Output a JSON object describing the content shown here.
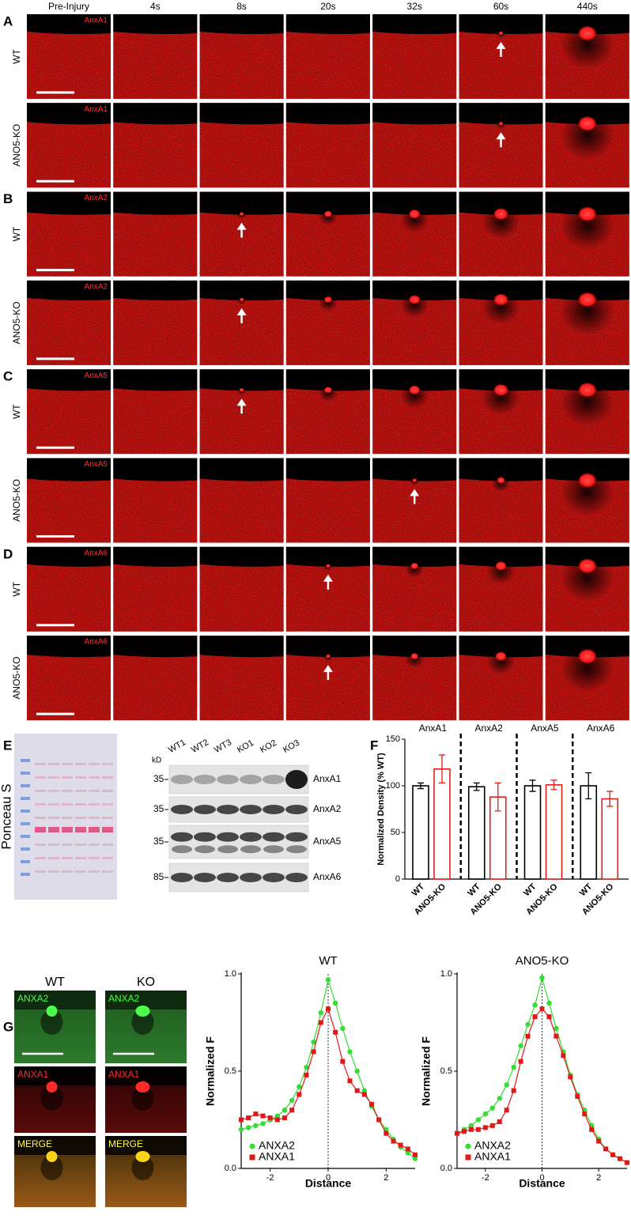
{
  "panels_ad": {
    "time_points": [
      "Pre-Injury",
      "4s",
      "8s",
      "20s",
      "32s",
      "60s",
      "440s"
    ],
    "panels": [
      {
        "letter": "A",
        "stain": "AnxA1",
        "rows": [
          "WT",
          "ANO5-KO"
        ]
      },
      {
        "letter": "B",
        "stain": "AnxA2",
        "rows": [
          "WT",
          "ANO5-KO"
        ]
      },
      {
        "letter": "C",
        "stain": "AnxA5",
        "rows": [
          "WT",
          "ANO5-KO"
        ]
      },
      {
        "letter": "D",
        "stain": "AnxA6",
        "rows": [
          "WT",
          "ANO5-KO"
        ]
      }
    ]
  },
  "panel_e": {
    "letter": "E",
    "ponceau_label": "Ponceau S",
    "kd_label": "kD",
    "lanes": [
      "WT1",
      "WT2",
      "WT3",
      "KO1",
      "KO2",
      "KO3"
    ],
    "blots": [
      {
        "marker": "35",
        "protein": "AnxA1"
      },
      {
        "marker": "35",
        "protein": "AnxA2"
      },
      {
        "marker": "35",
        "protein": "AnxA5"
      },
      {
        "marker": "85",
        "protein": "AnxA6"
      }
    ]
  },
  "panel_f": {
    "letter": "F"
  },
  "panel_g": {
    "letter": "G",
    "columns": [
      "WT",
      "KO"
    ],
    "channels": [
      "ANXA2",
      "ANXA1",
      "MERGE"
    ]
  },
  "chart_data": [
    {
      "type": "bar",
      "categories": [
        "AnxA1",
        "AnxA2",
        "AnxA5",
        "AnxA6"
      ],
      "y_label": "Normalized Density (% WT)",
      "ylim": [
        0,
        150
      ],
      "yticks": [
        0,
        50,
        100,
        150
      ],
      "series": [
        {
          "name": "WT",
          "color": "#000000",
          "values": [
            100,
            99,
            100,
            100
          ],
          "errors": [
            3,
            4,
            6,
            14
          ]
        },
        {
          "name": "ANO5-KO",
          "color": "#e0201b",
          "values": [
            118,
            88,
            101,
            86
          ],
          "errors": [
            15,
            15,
            5,
            8
          ]
        }
      ]
    },
    {
      "type": "line",
      "title": "WT",
      "x_label": "Distance",
      "y_label": "Normalized F",
      "xlim": [
        -3,
        3
      ],
      "xticks": [
        -2,
        0,
        2
      ],
      "ylim": [
        0,
        1
      ],
      "yticks": [
        {
          "value": 0,
          "label": "0.0"
        },
        {
          "value": 0.5,
          "label": "0.5"
        },
        {
          "value": 1,
          "label": "1.0"
        }
      ],
      "x": [
        -3,
        -2.75,
        -2.5,
        -2.25,
        -2,
        -1.75,
        -1.5,
        -1.25,
        -1,
        -0.75,
        -0.5,
        -0.25,
        0,
        0.25,
        0.5,
        0.75,
        1,
        1.25,
        1.5,
        1.75,
        2,
        2.25,
        2.5,
        2.75,
        3
      ],
      "series": [
        {
          "name": "ANXA2",
          "color": "#33dd33",
          "values": [
            0.2,
            0.21,
            0.22,
            0.23,
            0.25,
            0.27,
            0.3,
            0.35,
            0.42,
            0.52,
            0.65,
            0.8,
            0.97,
            0.85,
            0.72,
            0.6,
            0.5,
            0.4,
            0.32,
            0.25,
            0.2,
            0.15,
            0.11,
            0.08,
            0.05
          ]
        },
        {
          "name": "ANXA1",
          "color": "#e01818",
          "values": [
            0.25,
            0.26,
            0.28,
            0.27,
            0.26,
            0.25,
            0.26,
            0.3,
            0.38,
            0.48,
            0.6,
            0.75,
            0.82,
            0.7,
            0.55,
            0.45,
            0.4,
            0.38,
            0.33,
            0.25,
            0.18,
            0.14,
            0.12,
            0.1,
            0.07
          ]
        }
      ]
    },
    {
      "type": "line",
      "title": "ANO5-KO",
      "x_label": "Distance",
      "y_label": "Normalized F",
      "xlim": [
        -3,
        3
      ],
      "xticks": [
        -2,
        0,
        2
      ],
      "ylim": [
        0,
        1
      ],
      "yticks": [
        {
          "value": 0,
          "label": "0.0"
        },
        {
          "value": 0.5,
          "label": "0.5"
        },
        {
          "value": 1,
          "label": "1.0"
        }
      ],
      "x": [
        -3,
        -2.75,
        -2.5,
        -2.25,
        -2,
        -1.75,
        -1.5,
        -1.25,
        -1,
        -0.75,
        -0.5,
        -0.25,
        0,
        0.25,
        0.5,
        0.75,
        1,
        1.25,
        1.5,
        1.75,
        2,
        2.25,
        2.5,
        2.75,
        3
      ],
      "series": [
        {
          "name": "ANXA2",
          "color": "#33dd33",
          "values": [
            0.18,
            0.2,
            0.22,
            0.25,
            0.28,
            0.31,
            0.36,
            0.43,
            0.52,
            0.63,
            0.74,
            0.84,
            0.98,
            0.85,
            0.72,
            0.6,
            0.48,
            0.38,
            0.3,
            0.22,
            0.15,
            0.1,
            0.07,
            0.05,
            0.03
          ]
        },
        {
          "name": "ANXA1",
          "color": "#e01818",
          "values": [
            0.18,
            0.19,
            0.2,
            0.2,
            0.21,
            0.22,
            0.24,
            0.3,
            0.4,
            0.55,
            0.68,
            0.78,
            0.82,
            0.78,
            0.68,
            0.58,
            0.47,
            0.37,
            0.28,
            0.2,
            0.14,
            0.1,
            0.07,
            0.05,
            0.03
          ]
        }
      ]
    }
  ]
}
